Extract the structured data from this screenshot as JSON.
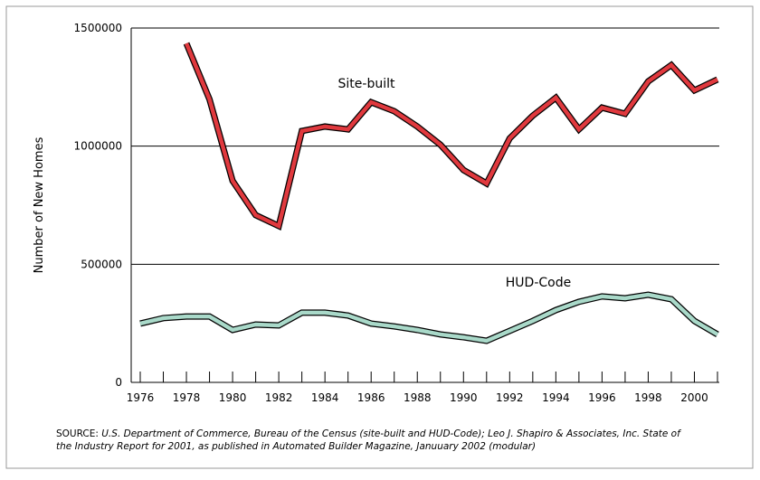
{
  "chart_data": {
    "type": "line",
    "y_label": "Number of New Homes",
    "source_label": "SOURCE:",
    "source_lines": [
      "U.S. Department of Commerce, Bureau of the Census (site-built and HUD-Code); Leo J. Shapiro & Associates, Inc.  State of",
      "the Industry Report for 2001, as published in Automated Builder Magazine, Januuary 2002 (modular)"
    ],
    "x": [
      1976,
      1977,
      1978,
      1979,
      1980,
      1981,
      1982,
      1983,
      1984,
      1985,
      1986,
      1987,
      1988,
      1989,
      1990,
      1991,
      1992,
      1993,
      1994,
      1995,
      1996,
      1997,
      1998,
      1999,
      2000,
      2001
    ],
    "xlim": [
      1976,
      2001
    ],
    "xticks": [
      1976,
      1978,
      1980,
      1982,
      1984,
      1986,
      1988,
      1990,
      1992,
      1994,
      1996,
      1998,
      2000
    ],
    "ylim": [
      0,
      1500000
    ],
    "yticks": [
      0,
      500000,
      1000000,
      1500000
    ],
    "grid": true,
    "series": [
      {
        "name": "Site-built",
        "color": "#e0393e",
        "values": [
          null,
          null,
          1435000,
          1198000,
          853000,
          708000,
          662000,
          1064000,
          1083000,
          1071000,
          1186000,
          1148000,
          1083000,
          1006000,
          899000,
          842000,
          1033000,
          1129000,
          1205000,
          1071000,
          1163000,
          1137000,
          1274000,
          1343000,
          1236000,
          1282000
        ]
      },
      {
        "name": "HUD-Code",
        "color": "#a9d9c9",
        "values": [
          249000,
          272000,
          279000,
          279000,
          222000,
          245000,
          241000,
          295000,
          295000,
          283000,
          249000,
          237000,
          222000,
          203000,
          191000,
          176000,
          218000,
          260000,
          306000,
          341000,
          364000,
          356000,
          371000,
          352000,
          260000,
          203000
        ]
      }
    ]
  }
}
